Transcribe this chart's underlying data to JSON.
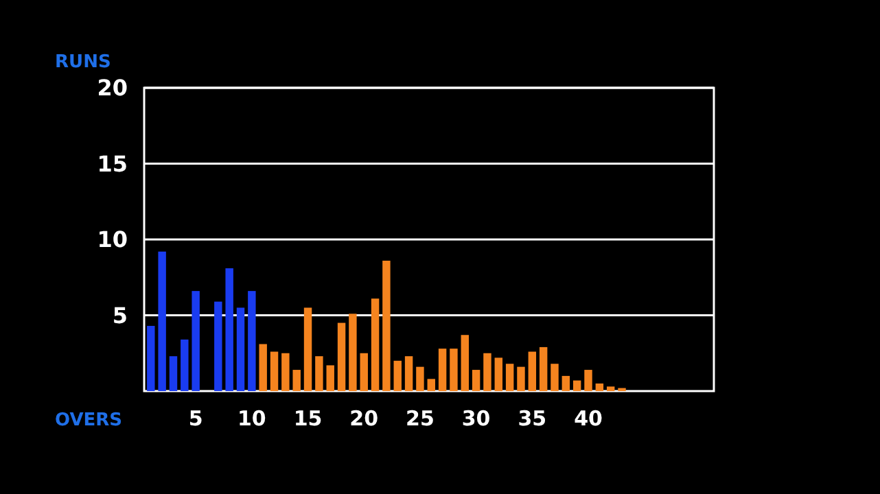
{
  "chart_data": {
    "type": "bar",
    "xlabel": "OVERS",
    "ylabel": "RUNS",
    "x": [
      1,
      2,
      3,
      4,
      5,
      6,
      7,
      8,
      9,
      10,
      11,
      12,
      13,
      14,
      15,
      16,
      17,
      18,
      19,
      20,
      21,
      22,
      23,
      24,
      25,
      26,
      27,
      28,
      29,
      30,
      31,
      32,
      33,
      34,
      35,
      36,
      37,
      38,
      39,
      40,
      41,
      42,
      43
    ],
    "values": [
      4.3,
      9.2,
      2.3,
      3.4,
      6.6,
      0,
      5.9,
      8.1,
      5.5,
      6.6,
      3.1,
      2.6,
      2.5,
      1.4,
      5.5,
      2.3,
      1.7,
      4.5,
      5.1,
      2.5,
      6.1,
      8.6,
      2.0,
      2.3,
      1.6,
      0.8,
      2.8,
      2.8,
      3.7,
      1.4,
      2.5,
      2.2,
      1.8,
      1.6,
      2.6,
      2.9,
      1.8,
      1.0,
      0.7,
      1.4,
      0.5,
      0.3,
      0.2
    ],
    "colors": [
      "#1a3cf0",
      "#1a3cf0",
      "#1a3cf0",
      "#1a3cf0",
      "#1a3cf0",
      "#1a3cf0",
      "#1a3cf0",
      "#1a3cf0",
      "#1a3cf0",
      "#1a3cf0",
      "#f5841f",
      "#f5841f",
      "#f5841f",
      "#f5841f",
      "#f5841f",
      "#f5841f",
      "#f5841f",
      "#f5841f",
      "#f5841f",
      "#f5841f",
      "#f5841f",
      "#f5841f",
      "#f5841f",
      "#f5841f",
      "#f5841f",
      "#f5841f",
      "#f5841f",
      "#f5841f",
      "#f5841f",
      "#f5841f",
      "#f5841f",
      "#f5841f",
      "#f5841f",
      "#f5841f",
      "#f5841f",
      "#f5841f",
      "#f5841f",
      "#f5841f",
      "#f5841f",
      "#f5841f",
      "#f5841f",
      "#f5841f",
      "#f5841f"
    ],
    "xlim": [
      0.4,
      51.2
    ],
    "xticks": [
      5,
      10,
      15,
      20,
      25,
      30,
      35,
      40
    ],
    "ylim": [
      0,
      20
    ],
    "yticks": [
      5,
      10,
      15,
      20
    ],
    "grid": "y"
  }
}
